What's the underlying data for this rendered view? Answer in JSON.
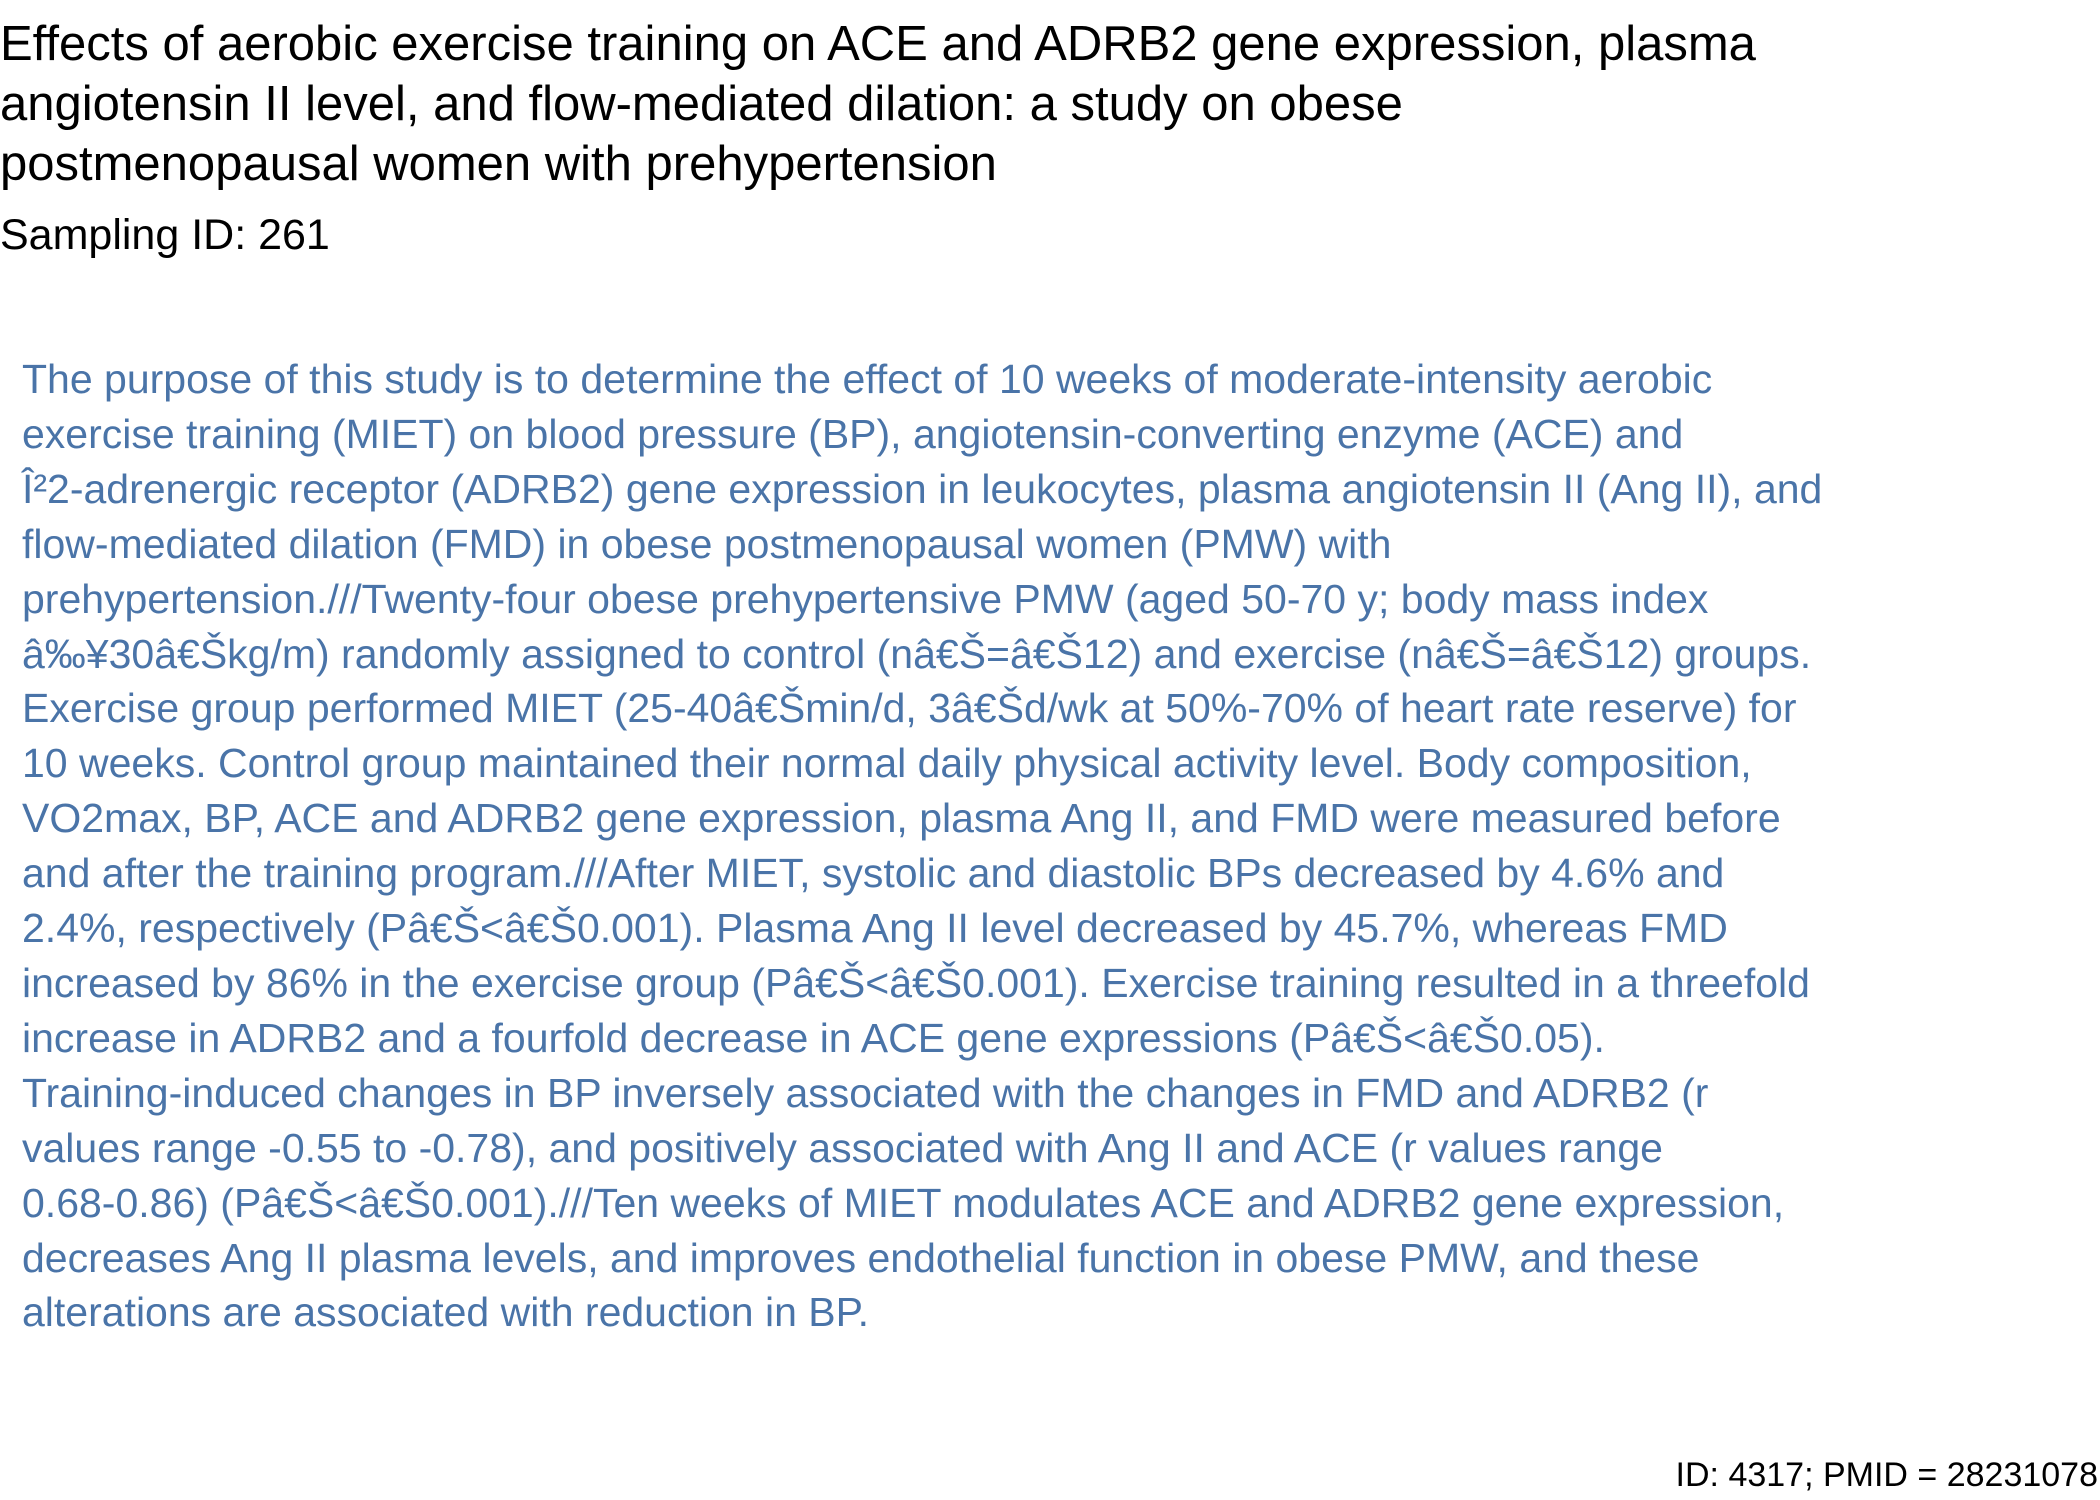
{
  "document": {
    "title_lines": [
      "Effects of aerobic exercise training on ACE and ADRB2 gene expression, plasma",
      "angiotensin II level, and flow-mediated dilation: a study on obese",
      "postmenopausal women with prehypertension"
    ],
    "sampling_id": "Sampling ID: 261",
    "abstract_lines": [
      "The purpose of this study is to determine the effect of 10 weeks of moderate-intensity aerobic",
      "exercise training (MIET) on blood pressure (BP), angiotensin-converting enzyme (ACE) and",
      "Î²2-adrenergic receptor (ADRB2) gene expression in leukocytes, plasma angiotensin II (Ang II), and",
      "flow-mediated dilation (FMD) in obese postmenopausal women (PMW) with",
      "prehypertension.///Twenty-four obese prehypertensive PMW (aged 50-70 y; body mass index",
      "â‰¥30â€Škg/m) randomly assigned to control (nâ€Š=â€Š12) and exercise (nâ€Š=â€Š12) groups.",
      "Exercise group performed MIET (25-40â€Šmin/d, 3â€Šd/wk at 50%-70% of heart rate reserve) for",
      "10 weeks. Control group maintained their normal daily physical activity level. Body composition,",
      "VO2max, BP, ACE and ADRB2 gene expression, plasma Ang II, and FMD were measured before",
      "and after the training program.///After MIET, systolic and diastolic BPs decreased by 4.6% and",
      "2.4%, respectively (Pâ€Š<â€Š0.001). Plasma Ang II level decreased by 45.7%, whereas FMD",
      "increased by 86% in the exercise group (Pâ€Š<â€Š0.001). Exercise training resulted in a threefold",
      "increase in ADRB2 and a fourfold decrease in ACE gene expressions (Pâ€Š<â€Š0.05).",
      "Training-induced changes in BP inversely associated with the changes in FMD and ADRB2 (r",
      "values range -0.55 to -0.78), and positively associated with Ang II and ACE (r values range",
      "0.68-0.86) (Pâ€Š<â€Š0.001).///Ten weeks of MIET modulates ACE and ADRB2 gene expression,",
      "decreases Ang II plasma levels, and improves endothelial function in obese PMW, and these",
      "alterations are associated with reduction in BP."
    ],
    "footer_id": "ID: 4317; PMID = 28231078"
  },
  "colors": {
    "title": "#000000",
    "abstract": "#4a74a8",
    "background": "#ffffff"
  }
}
